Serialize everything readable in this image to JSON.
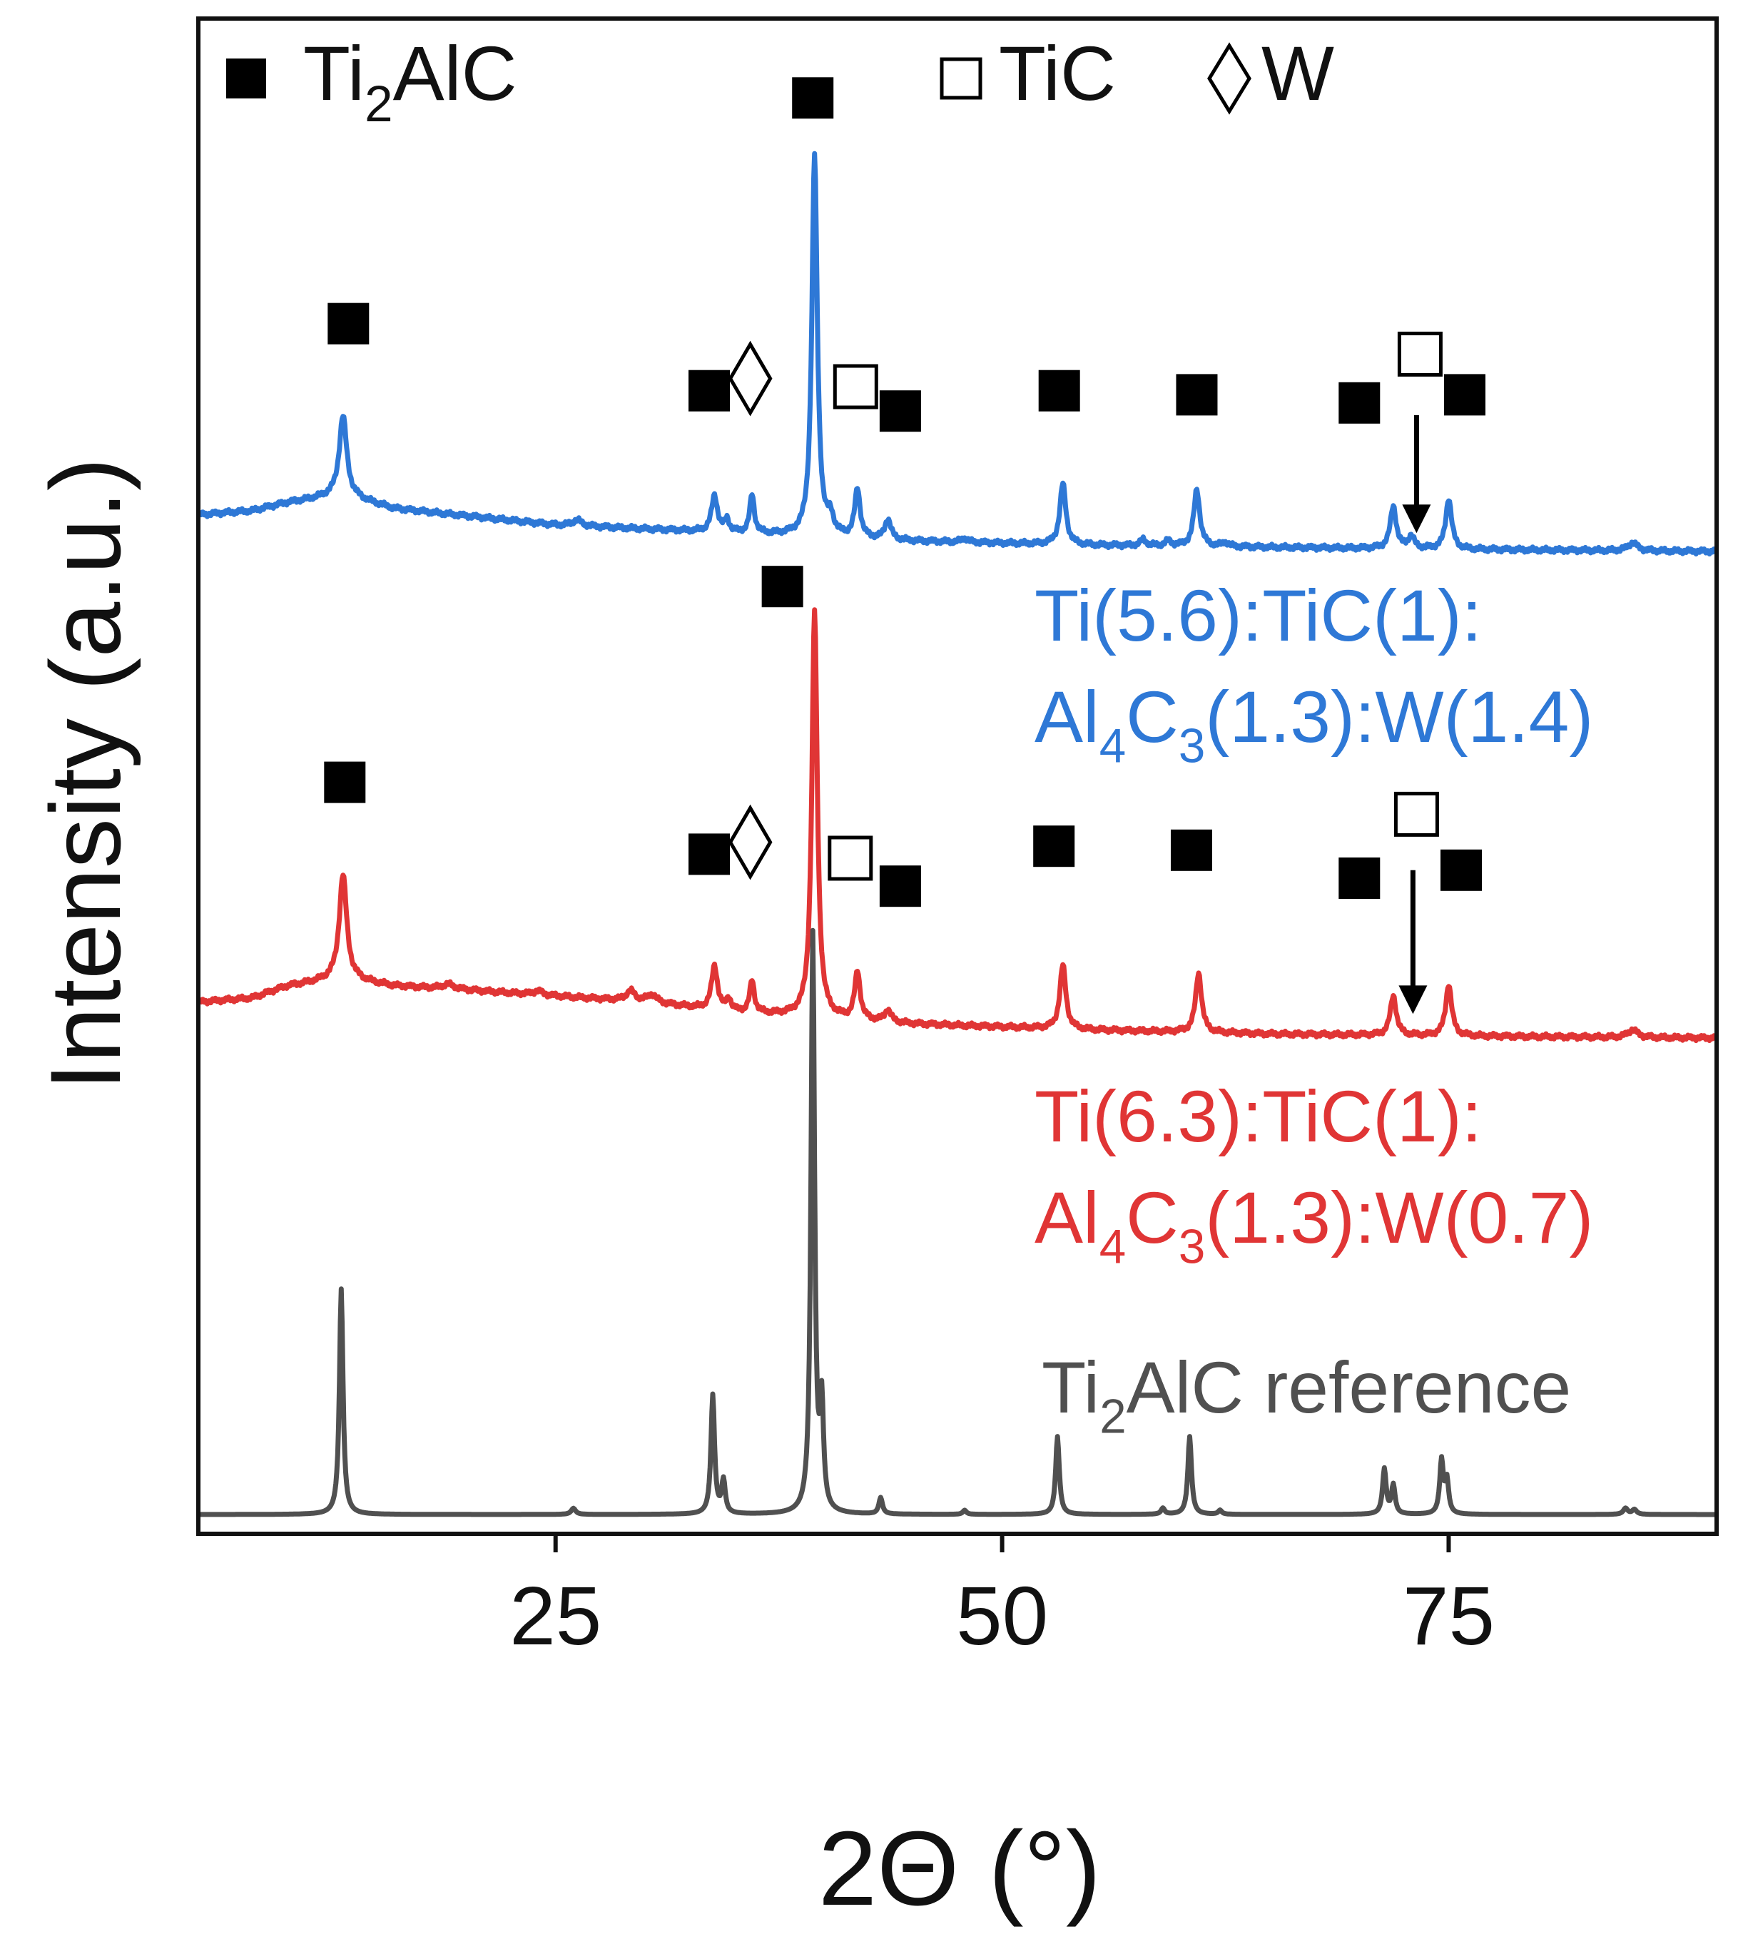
{
  "chart_data": {
    "type": "line",
    "xlabel": "2Θ (°)",
    "ylabel": "Intensity (a.u.)",
    "xlim": [
      5,
      90
    ],
    "xticks": [
      25,
      50,
      75
    ],
    "grid": false,
    "legend_position": "top",
    "legend": [
      {
        "marker": "filled-square",
        "text": "Ti2AlC",
        "parts": [
          {
            "t": "Ti"
          },
          {
            "t": "2",
            "sub": true
          },
          {
            "t": "AlC"
          }
        ]
      },
      {
        "marker": "open-square",
        "text": "TiC",
        "parts": [
          {
            "t": "TiC"
          }
        ]
      },
      {
        "marker": "diamond",
        "text": "W",
        "parts": [
          {
            "t": "W"
          }
        ]
      }
    ],
    "series": [
      {
        "key": "w14",
        "color": "#2e78d6",
        "label_lines": [
          {
            "text": "Ti(5.6):TiC(1):",
            "parts": [
              {
                "t": "Ti(5.6):TiC(1):"
              }
            ]
          },
          {
            "text": "Al4C3(1.3):W(1.4)",
            "parts": [
              {
                "t": "Al"
              },
              {
                "t": "4",
                "sub": true
              },
              {
                "t": "C"
              },
              {
                "t": "3",
                "sub": true
              },
              {
                "t": "(1.3):W(1.4)"
              }
            ]
          }
        ],
        "baseline": [
          [
            5,
            0.085
          ],
          [
            8,
            0.095
          ],
          [
            10,
            0.115
          ],
          [
            13,
            0.135
          ],
          [
            16,
            0.1
          ],
          [
            25,
            0.06
          ],
          [
            35,
            0.04
          ],
          [
            45,
            0.02
          ],
          [
            55,
            0.01
          ],
          [
            65,
            0.005
          ],
          [
            75,
            0.0
          ],
          [
            90,
            -0.005
          ]
        ],
        "peaks": [
          {
            "x": 13.1,
            "h": 0.195,
            "w": 0.25
          },
          {
            "x": 26.2,
            "h": 0.015,
            "w": 0.3
          },
          {
            "x": 33.9,
            "h": 0.09,
            "w": 0.2
          },
          {
            "x": 34.6,
            "h": 0.03,
            "w": 0.15
          },
          {
            "x": 36.0,
            "h": 0.095,
            "w": 0.15
          },
          {
            "x": 39.5,
            "h": 0.94,
            "w": 0.18
          },
          {
            "x": 40.4,
            "h": 0.04,
            "w": 0.2
          },
          {
            "x": 41.9,
            "h": 0.12,
            "w": 0.18
          },
          {
            "x": 43.6,
            "h": 0.05,
            "w": 0.2
          },
          {
            "x": 47.9,
            "h": 0.01,
            "w": 0.2
          },
          {
            "x": 53.4,
            "h": 0.15,
            "w": 0.2
          },
          {
            "x": 57.9,
            "h": 0.015,
            "w": 0.2
          },
          {
            "x": 59.3,
            "h": 0.012,
            "w": 0.2
          },
          {
            "x": 60.9,
            "h": 0.14,
            "w": 0.2
          },
          {
            "x": 62.5,
            "h": 0.01,
            "w": 0.2
          },
          {
            "x": 71.9,
            "h": 0.105,
            "w": 0.2
          },
          {
            "x": 72.9,
            "h": 0.03,
            "w": 0.2
          },
          {
            "x": 75.0,
            "h": 0.125,
            "w": 0.2
          },
          {
            "x": 85.3,
            "h": 0.02,
            "w": 0.3
          }
        ],
        "markers": [
          {
            "type": "filled",
            "x": 13.4,
            "y": 0.555
          },
          {
            "type": "filled",
            "x": 33.6,
            "y": 0.39
          },
          {
            "type": "diamond",
            "x": 35.9,
            "y": 0.42
          },
          {
            "type": "filled",
            "x": 39.4,
            "y": 1.11
          },
          {
            "type": "open",
            "x": 41.8,
            "y": 0.4
          },
          {
            "type": "filled",
            "x": 44.3,
            "y": 0.34
          },
          {
            "type": "filled",
            "x": 53.2,
            "y": 0.39
          },
          {
            "type": "filled",
            "x": 60.9,
            "y": 0.38
          },
          {
            "type": "filled",
            "x": 70.0,
            "y": 0.36
          },
          {
            "type": "open",
            "x": 73.4,
            "y": 0.48
          },
          {
            "type": "filled",
            "x": 75.9,
            "y": 0.38
          }
        ],
        "arrow": {
          "x": 73.2,
          "y_from": 0.33,
          "y_to": 0.04
        }
      },
      {
        "key": "w07",
        "color": "#e03535",
        "label_lines": [
          {
            "text": "Ti(6.3):TiC(1):",
            "parts": [
              {
                "t": "Ti(6.3):TiC(1):"
              }
            ]
          },
          {
            "text": "Al4C3(1.3):W(0.7)",
            "parts": [
              {
                "t": "Al"
              },
              {
                "t": "4",
                "sub": true
              },
              {
                "t": "C"
              },
              {
                "t": "3",
                "sub": true
              },
              {
                "t": "(1.3):W(0.7)"
              }
            ]
          }
        ],
        "baseline": [
          [
            5,
            0.09
          ],
          [
            8,
            0.1
          ],
          [
            10,
            0.13
          ],
          [
            13,
            0.15
          ],
          [
            16,
            0.13
          ],
          [
            20,
            0.12
          ],
          [
            25,
            0.105
          ],
          [
            30,
            0.09
          ],
          [
            35,
            0.065
          ],
          [
            45,
            0.035
          ],
          [
            55,
            0.02
          ],
          [
            65,
            0.01
          ],
          [
            75,
            0.005
          ],
          [
            90,
            0.0
          ]
        ],
        "peaks": [
          {
            "x": 13.1,
            "h": 0.26,
            "w": 0.25
          },
          {
            "x": 19.0,
            "h": 0.012,
            "w": 0.4
          },
          {
            "x": 24.0,
            "h": 0.01,
            "w": 0.3
          },
          {
            "x": 29.2,
            "h": 0.025,
            "w": 0.3
          },
          {
            "x": 30.4,
            "h": 0.02,
            "w": 0.3
          },
          {
            "x": 33.9,
            "h": 0.11,
            "w": 0.2
          },
          {
            "x": 34.7,
            "h": 0.03,
            "w": 0.15
          },
          {
            "x": 36.0,
            "h": 0.08,
            "w": 0.15
          },
          {
            "x": 39.5,
            "h": 1.02,
            "w": 0.18
          },
          {
            "x": 41.9,
            "h": 0.12,
            "w": 0.18
          },
          {
            "x": 43.6,
            "h": 0.03,
            "w": 0.2
          },
          {
            "x": 53.4,
            "h": 0.16,
            "w": 0.2
          },
          {
            "x": 61.0,
            "h": 0.15,
            "w": 0.2
          },
          {
            "x": 71.9,
            "h": 0.1,
            "w": 0.2
          },
          {
            "x": 75.0,
            "h": 0.13,
            "w": 0.2
          },
          {
            "x": 85.3,
            "h": 0.02,
            "w": 0.3
          }
        ],
        "markers": [
          {
            "type": "filled",
            "x": 13.2,
            "y": 0.64
          },
          {
            "type": "filled",
            "x": 33.6,
            "y": 0.46
          },
          {
            "type": "diamond",
            "x": 35.9,
            "y": 0.49
          },
          {
            "type": "filled",
            "x": 37.7,
            "y": 1.13
          },
          {
            "type": "open",
            "x": 41.5,
            "y": 0.45
          },
          {
            "type": "filled",
            "x": 44.3,
            "y": 0.38
          },
          {
            "type": "filled",
            "x": 52.9,
            "y": 0.48
          },
          {
            "type": "filled",
            "x": 60.6,
            "y": 0.47
          },
          {
            "type": "filled",
            "x": 70.0,
            "y": 0.4
          },
          {
            "type": "open",
            "x": 73.2,
            "y": 0.56
          },
          {
            "type": "filled",
            "x": 75.7,
            "y": 0.42
          }
        ],
        "arrow": {
          "x": 73.0,
          "y_from": 0.42,
          "y_to": 0.06
        }
      },
      {
        "key": "ref",
        "color": "#505050",
        "label_lines": [
          {
            "text": "Ti2AlC reference",
            "parts": [
              {
                "t": "Ti"
              },
              {
                "t": "2",
                "sub": true
              },
              {
                "t": "AlC reference"
              }
            ]
          }
        ],
        "baseline": [
          [
            5,
            0.0
          ],
          [
            90,
            0.0
          ]
        ],
        "peaks": [
          {
            "x": 13.0,
            "h": 0.55,
            "w": 0.12
          },
          {
            "x": 26.0,
            "h": 0.015,
            "w": 0.15
          },
          {
            "x": 33.8,
            "h": 0.29,
            "w": 0.12
          },
          {
            "x": 34.4,
            "h": 0.08,
            "w": 0.12
          },
          {
            "x": 39.4,
            "h": 1.41,
            "w": 0.12
          },
          {
            "x": 39.9,
            "h": 0.25,
            "w": 0.12
          },
          {
            "x": 43.2,
            "h": 0.04,
            "w": 0.12
          },
          {
            "x": 47.9,
            "h": 0.01,
            "w": 0.12
          },
          {
            "x": 53.1,
            "h": 0.19,
            "w": 0.12
          },
          {
            "x": 59.0,
            "h": 0.015,
            "w": 0.12
          },
          {
            "x": 60.5,
            "h": 0.19,
            "w": 0.12
          },
          {
            "x": 62.2,
            "h": 0.01,
            "w": 0.12
          },
          {
            "x": 71.4,
            "h": 0.11,
            "w": 0.12
          },
          {
            "x": 71.9,
            "h": 0.07,
            "w": 0.12
          },
          {
            "x": 74.6,
            "h": 0.13,
            "w": 0.12
          },
          {
            "x": 74.9,
            "h": 0.08,
            "w": 0.12
          },
          {
            "x": 84.9,
            "h": 0.015,
            "w": 0.15
          },
          {
            "x": 85.4,
            "h": 0.012,
            "w": 0.15
          }
        ],
        "markers": []
      }
    ]
  }
}
